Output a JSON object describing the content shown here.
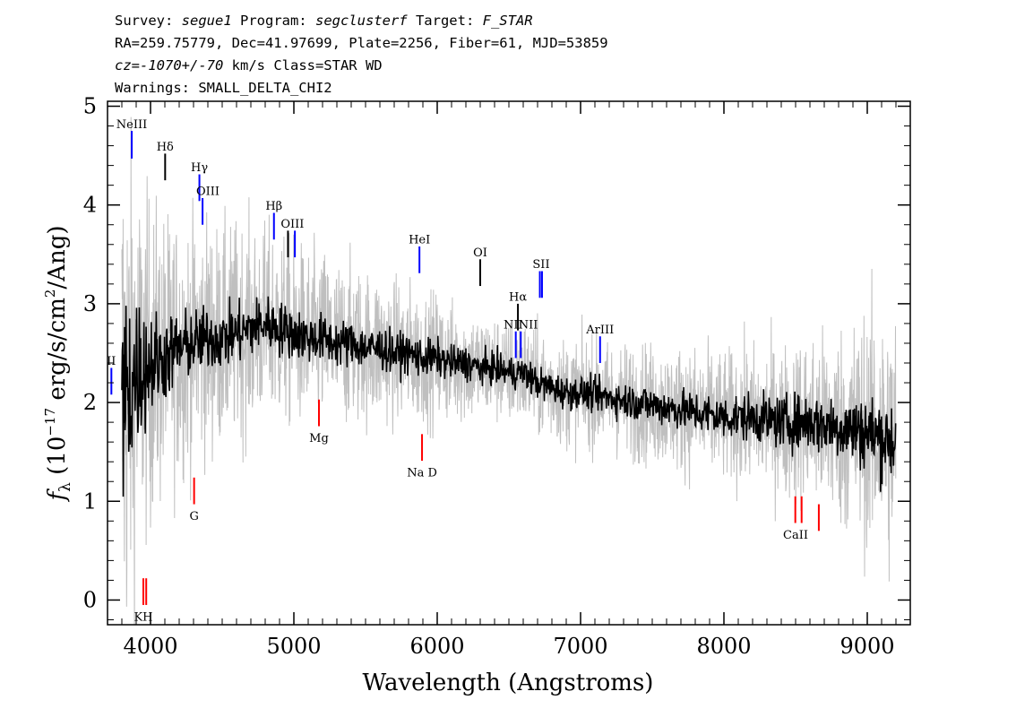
{
  "header": {
    "line1": {
      "prefix": "Survey: ",
      "survey": "segue1",
      "mid1": " Program: ",
      "program": "segclusterf",
      "mid2": " Target: ",
      "target": "F_STAR"
    },
    "line2": "RA=259.75779, Dec=41.97699, Plate=2256, Fiber=61, MJD=53859",
    "line3": {
      "cz": "cz=-1070+/-70",
      "rest": " km/s Class=STAR WD"
    },
    "line4": "Warnings: SMALL_DELTA_CHI2"
  },
  "chart_data": {
    "type": "line",
    "xlabel": "Wavelength (Angstroms)",
    "ylabel": {
      "f": "f",
      "sub": "λ",
      "pre": " (10",
      "exp1": "−17",
      "mid": " erg/s/cm",
      "exp2": "2",
      "post": "/Ang)"
    },
    "xlim": [
      3700,
      9300
    ],
    "ylim": [
      -0.25,
      5.05
    ],
    "xticks": [
      "4000",
      "5000",
      "6000",
      "7000",
      "8000",
      "9000"
    ],
    "yticks": [
      "0",
      "1",
      "2",
      "3",
      "4",
      "5"
    ],
    "grid": false,
    "series": [
      {
        "role": "error",
        "color": "#bfbfbf",
        "x": [
          3800,
          3830,
          3860,
          3900,
          3950,
          4000,
          4100,
          4200,
          4300,
          4400,
          4500,
          4600,
          4700,
          4800,
          4900,
          5000,
          5100,
          5200,
          5300,
          5400,
          5500,
          5600,
          5700,
          5800,
          5900,
          6000,
          6100,
          6200,
          6300,
          6400,
          6500,
          6600,
          6700,
          6800,
          6900,
          7000,
          7200,
          7400,
          7600,
          7800,
          8000,
          8200,
          8400,
          8600,
          8800,
          9000,
          9200
        ],
        "y": [
          1.9,
          2.1,
          2.2,
          2.3,
          2.35,
          2.4,
          2.45,
          2.55,
          2.6,
          2.65,
          2.65,
          2.7,
          2.75,
          2.8,
          2.75,
          2.7,
          2.65,
          2.65,
          2.6,
          2.6,
          2.55,
          2.55,
          2.5,
          2.5,
          2.45,
          2.45,
          2.4,
          2.4,
          2.35,
          2.35,
          2.3,
          2.3,
          2.2,
          2.15,
          2.1,
          2.1,
          2.05,
          2.0,
          1.95,
          1.9,
          1.85,
          1.85,
          1.8,
          1.8,
          1.75,
          1.7,
          1.6
        ],
        "spread": [
          3.0,
          2.5,
          2.2,
          1.8,
          1.6,
          1.5,
          1.3,
          1.2,
          1.1,
          1.1,
          1.0,
          1.0,
          0.95,
          0.9,
          0.9,
          0.85,
          0.8,
          0.8,
          0.75,
          0.75,
          0.7,
          0.7,
          0.65,
          0.65,
          0.6,
          0.6,
          0.55,
          0.55,
          0.5,
          0.5,
          0.5,
          0.5,
          0.5,
          0.5,
          0.5,
          0.5,
          0.5,
          0.55,
          0.55,
          0.6,
          0.6,
          0.65,
          0.7,
          0.8,
          0.9,
          1.1,
          1.3
        ]
      },
      {
        "role": "flux",
        "color": "#000000",
        "x": [
          3800,
          3830,
          3860,
          3900,
          3950,
          4000,
          4100,
          4200,
          4300,
          4400,
          4500,
          4600,
          4700,
          4800,
          4900,
          5000,
          5100,
          5200,
          5300,
          5400,
          5500,
          5600,
          5700,
          5800,
          5900,
          6000,
          6100,
          6200,
          6300,
          6400,
          6500,
          6600,
          6700,
          6800,
          6900,
          7000,
          7200,
          7400,
          7600,
          7800,
          8000,
          8200,
          8400,
          8600,
          8800,
          9000,
          9200
        ],
        "y": [
          1.9,
          2.1,
          2.2,
          2.3,
          2.35,
          2.4,
          2.45,
          2.55,
          2.6,
          2.65,
          2.65,
          2.7,
          2.75,
          2.8,
          2.75,
          2.7,
          2.65,
          2.65,
          2.6,
          2.6,
          2.55,
          2.55,
          2.5,
          2.5,
          2.45,
          2.45,
          2.4,
          2.4,
          2.35,
          2.35,
          2.3,
          2.3,
          2.2,
          2.15,
          2.1,
          2.1,
          2.05,
          2.0,
          1.95,
          1.9,
          1.85,
          1.85,
          1.8,
          1.8,
          1.75,
          1.7,
          1.6
        ],
        "spread": [
          1.2,
          1.0,
          0.9,
          0.75,
          0.6,
          0.5,
          0.4,
          0.35,
          0.3,
          0.3,
          0.28,
          0.28,
          0.27,
          0.26,
          0.25,
          0.24,
          0.23,
          0.22,
          0.22,
          0.21,
          0.2,
          0.2,
          0.19,
          0.18,
          0.18,
          0.17,
          0.16,
          0.16,
          0.15,
          0.15,
          0.15,
          0.15,
          0.15,
          0.15,
          0.15,
          0.15,
          0.16,
          0.17,
          0.18,
          0.19,
          0.2,
          0.22,
          0.24,
          0.27,
          0.3,
          0.35,
          0.4
        ]
      }
    ],
    "emission_lines": [
      {
        "label": "NeIII",
        "x": 3869,
        "y0": 4.47,
        "y1": 4.75,
        "lx": 3869,
        "ly": 4.78,
        "color": "#0000ff"
      },
      {
        "label": "Hδ",
        "x": 4102,
        "y0": 4.25,
        "y1": 4.52,
        "lx": 4102,
        "ly": 4.55,
        "color": "#000000"
      },
      {
        "label": "Hγ",
        "x": 4341,
        "y0": 4.04,
        "y1": 4.31,
        "lx": 4341,
        "ly": 4.34,
        "color": "#0000ff"
      },
      {
        "label": "OIII",
        "x": 4363,
        "y0": 3.8,
        "y1": 4.07,
        "lx": 4400,
        "ly": 4.1,
        "color": "#0000ff"
      },
      {
        "label": "Hβ",
        "x": 4861,
        "y0": 3.65,
        "y1": 3.92,
        "lx": 4861,
        "ly": 3.95,
        "color": "#0000ff"
      },
      {
        "label": "OIII",
        "x": 4959,
        "y0": 3.47,
        "y1": 3.74,
        "lx": 4990,
        "ly": 3.77,
        "color": "#000000"
      },
      {
        "label": "",
        "x": 5007,
        "y0": 3.47,
        "y1": 3.74,
        "lx": 5007,
        "ly": 3.77,
        "color": "#0000ff"
      },
      {
        "label": "HeI",
        "x": 5876,
        "y0": 3.31,
        "y1": 3.58,
        "lx": 5876,
        "ly": 3.61,
        "color": "#0000ff"
      },
      {
        "label": "OI",
        "x": 6300,
        "y0": 3.18,
        "y1": 3.45,
        "lx": 6300,
        "ly": 3.48,
        "color": "#000000"
      },
      {
        "label": "NII",
        "x": 6548,
        "y0": 2.45,
        "y1": 2.72,
        "lx": 6530,
        "ly": 2.75,
        "color": "#0000ff"
      },
      {
        "label": "Hα",
        "x": 6563,
        "y0": 2.73,
        "y1": 3.0,
        "lx": 6563,
        "ly": 3.03,
        "color": "#000000"
      },
      {
        "label": "NII",
        "x": 6583,
        "y0": 2.45,
        "y1": 2.72,
        "lx": 6635,
        "ly": 2.75,
        "color": "#0000ff"
      },
      {
        "label": "SII",
        "x": 6716,
        "y0": 3.06,
        "y1": 3.33,
        "lx": 6725,
        "ly": 3.36,
        "color": "#0000ff"
      },
      {
        "label": "",
        "x": 6731,
        "y0": 3.06,
        "y1": 3.33,
        "lx": 6731,
        "ly": 3.36,
        "color": "#0000ff"
      },
      {
        "label": "ArIII",
        "x": 7136,
        "y0": 2.4,
        "y1": 2.67,
        "lx": 7136,
        "ly": 2.7,
        "color": "#0000ff"
      },
      {
        "label": "II",
        "x": 3727,
        "y0": 2.08,
        "y1": 2.35,
        "lx": 3727,
        "ly": 2.38,
        "color": "#0000ff"
      }
    ],
    "absorption_lines": [
      {
        "label": "Mg",
        "x": 5175,
        "y0": 1.76,
        "y1": 2.03,
        "lx": 5175,
        "ly": 1.6,
        "color": "#ff0000"
      },
      {
        "label": "Na D",
        "x": 5894,
        "y0": 1.41,
        "y1": 1.68,
        "lx": 5894,
        "ly": 1.25,
        "color": "#ff0000"
      },
      {
        "label": "G",
        "x": 4304,
        "y0": 0.97,
        "y1": 1.24,
        "lx": 4304,
        "ly": 0.81,
        "color": "#ff0000"
      },
      {
        "label": "CaII",
        "x": 8498,
        "y0": 0.78,
        "y1": 1.05,
        "lx": 8500,
        "ly": 0.62,
        "color": "#ff0000"
      },
      {
        "label": "",
        "x": 8542,
        "y0": 0.78,
        "y1": 1.05,
        "lx": 8542,
        "ly": 0.62,
        "color": "#ff0000"
      },
      {
        "label": "",
        "x": 8662,
        "y0": 0.7,
        "y1": 0.97,
        "lx": 8662,
        "ly": 0.54,
        "color": "#ff0000"
      },
      {
        "label": "KH",
        "x": 3950,
        "y0": -0.05,
        "y1": 0.22,
        "lx": 3950,
        "ly": -0.21,
        "color": "#ff0000"
      },
      {
        "label": "",
        "x": 3970,
        "y0": -0.05,
        "y1": 0.22,
        "lx": 3970,
        "ly": -0.21,
        "color": "#ff0000"
      }
    ]
  }
}
